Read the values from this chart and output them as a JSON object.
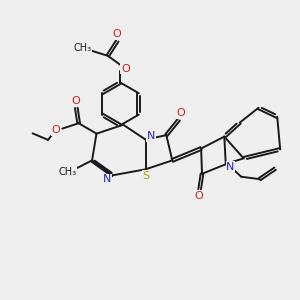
{
  "bg_color": "#efefef",
  "bond_color": "#1a1a1a",
  "N_color": "#2222cc",
  "O_color": "#cc2222",
  "S_color": "#aaaa00",
  "line_width": 1.4,
  "font_size": 8.0,
  "fig_size": [
    3.0,
    3.0
  ],
  "dpi": 100,
  "xlim": [
    0,
    10
  ],
  "ylim": [
    0,
    10
  ]
}
